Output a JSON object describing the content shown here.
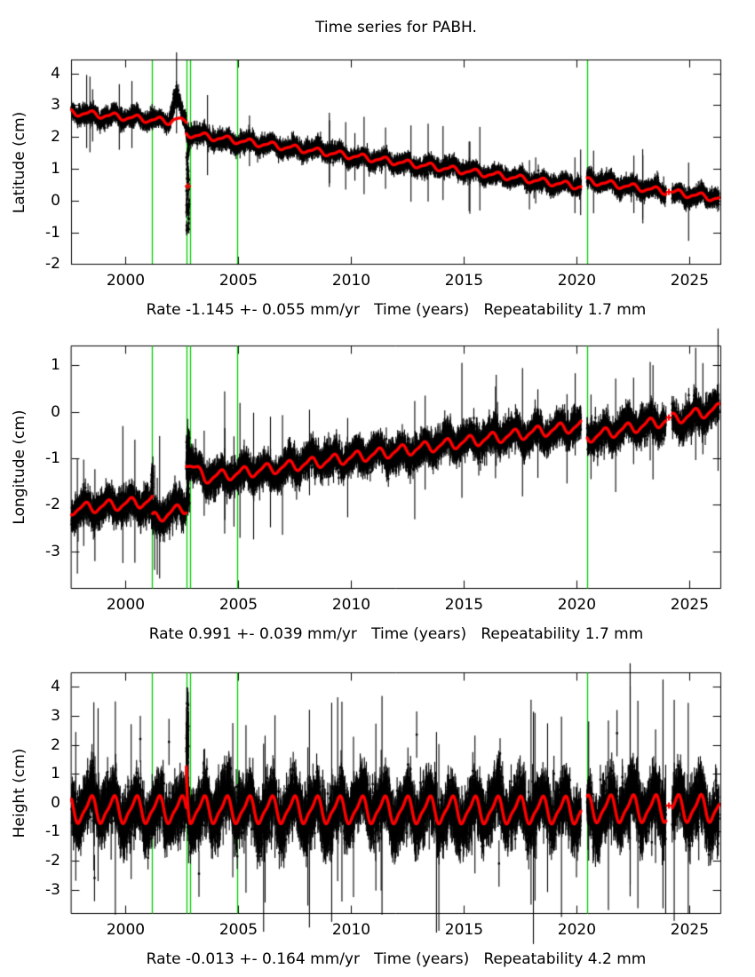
{
  "title": "Time series for PABH.",
  "colors": {
    "model_line": "#ff0000",
    "data_points": "#000000",
    "event_line": "#00cc00",
    "frame": "#000000",
    "text": "#000000",
    "background": "#ffffff"
  },
  "chart_data": {
    "type": "scatter",
    "title": "Time series for PABH.",
    "grid": false,
    "legend": "none",
    "x": {
      "ticks": [
        2000,
        2005,
        2010,
        2015,
        2020,
        2025
      ],
      "range": [
        1997.58,
        2026.4
      ],
      "data_start": 1997.6,
      "data_end": 2026.3
    },
    "event_lines_x": [
      2001.18,
      2002.68,
      2002.85,
      2004.94,
      2020.45
    ],
    "gaps": [
      [
        2020.18,
        2020.45
      ],
      [
        2023.95,
        2024.22
      ]
    ],
    "panels": [
      {
        "ylabel": "Latitude (cm)",
        "caption": "Rate -1.145 +- 0.055 mm/yr   Time (years)   Repeatability 1.7 mm",
        "rate_mm_yr": -1.145,
        "rate_sigma_mm_yr": 0.055,
        "repeatability_mm": 1.7,
        "ylim": [
          -2.02,
          4.44
        ],
        "yticks": [
          -2,
          -1,
          0,
          1,
          2,
          3,
          4
        ],
        "trend_segments": [
          {
            "t0": 1997.6,
            "t1": 2002.68,
            "v0": 2.78,
            "v1": 2.44
          },
          {
            "t0": 2002.68,
            "t1": 2020.18,
            "v0": 2.1,
            "v1": 0.44
          },
          {
            "t0": 2020.45,
            "t1": 2026.3,
            "v0": 0.62,
            "v1": 0.06
          }
        ],
        "seasonal": {
          "annual_amp": 0.09,
          "semiannual_amp": 0.03,
          "phase": 0.45
        },
        "noise_sigma": 0.1,
        "error_bar": 0.16,
        "bumps": [
          {
            "t0": 2001.95,
            "t1": 2002.55,
            "data_amp": 0.72,
            "model_amp": 0.1
          }
        ],
        "bursts": [
          {
            "t0": 2002.69,
            "t1": 2002.83,
            "low": -1.05,
            "high": 2.35
          }
        ],
        "model_spikes": [],
        "outliers": [],
        "lone_model_points": [
          [
            2002.76,
            0.45
          ],
          [
            2024.08,
            0.27
          ]
        ]
      },
      {
        "ylabel": "Longitude (cm)",
        "caption": "Rate 0.991 +- 0.039 mm/yr   Time (years)   Repeatability 1.7 mm",
        "rate_mm_yr": 0.991,
        "rate_sigma_mm_yr": 0.039,
        "repeatability_mm": 1.7,
        "ylim": [
          -3.81,
          1.43
        ],
        "yticks": [
          -3,
          -2,
          -1,
          0,
          1
        ],
        "trend_segments": [
          {
            "t0": 1997.6,
            "t1": 2001.18,
            "v0": -2.1,
            "v1": -1.92
          },
          {
            "t0": 2001.18,
            "t1": 2002.68,
            "v0": -2.3,
            "v1": -2.06
          },
          {
            "t0": 2002.68,
            "t1": 2003.5,
            "v0": -1.06,
            "v1": -1.42
          },
          {
            "t0": 2003.5,
            "t1": 2020.18,
            "v0": -1.42,
            "v1": -0.3
          },
          {
            "t0": 2020.45,
            "t1": 2026.3,
            "v0": -0.55,
            "v1": 0.06
          }
        ],
        "seasonal": {
          "annual_amp": 0.11,
          "semiannual_amp": 0.03,
          "phase": 0.2
        },
        "noise_sigma": 0.13,
        "error_bar": 0.19,
        "bumps": [],
        "bursts": [
          {
            "t0": 2002.69,
            "t1": 2002.83,
            "low": -2.05,
            "high": -0.52
          },
          {
            "t0": 2001.13,
            "t1": 2001.22,
            "low": -2.3,
            "high": -1.15
          }
        ],
        "model_spikes": [],
        "outliers": [],
        "lone_model_points": [
          [
            2024.08,
            -0.12
          ]
        ]
      },
      {
        "ylabel": "Height (cm)",
        "caption": "Rate -0.013 +- 0.164 mm/yr   Time (years)   Repeatability 4.2 mm",
        "rate_mm_yr": -0.013,
        "rate_sigma_mm_yr": 0.164,
        "repeatability_mm": 4.2,
        "ylim": [
          -3.84,
          4.5
        ],
        "yticks": [
          -3,
          -2,
          -1,
          0,
          1,
          2,
          3,
          4
        ],
        "trend_segments": [
          {
            "t0": 1997.6,
            "t1": 2020.18,
            "v0": -0.24,
            "v1": -0.26
          },
          {
            "t0": 2020.45,
            "t1": 2026.3,
            "v0": -0.22,
            "v1": -0.2
          }
        ],
        "seasonal": {
          "annual_amp": 0.43,
          "semiannual_amp": 0.12,
          "phase": 0.45
        },
        "noise_sigma": 0.4,
        "error_bar": 0.5,
        "bumps": [],
        "bursts": [
          {
            "t0": 2002.69,
            "t1": 2002.8,
            "low": -0.5,
            "high": 3.52
          }
        ],
        "model_spikes": [
          {
            "t0": 2002.68,
            "amp": 1.78,
            "decay": 0.05,
            "dur": 0.16
          }
        ],
        "outliers": [
          [
            2000.65,
            2.2
          ],
          [
            2001.92,
            2.1
          ],
          [
            2012.9,
            2.35
          ],
          [
            2021.78,
            2.4
          ],
          [
            1998.62,
            -2.6
          ],
          [
            2003.25,
            -2.45
          ],
          [
            2016.55,
            -2.1
          ]
        ],
        "lone_model_points": [
          [
            2024.08,
            -0.1
          ]
        ]
      }
    ]
  }
}
